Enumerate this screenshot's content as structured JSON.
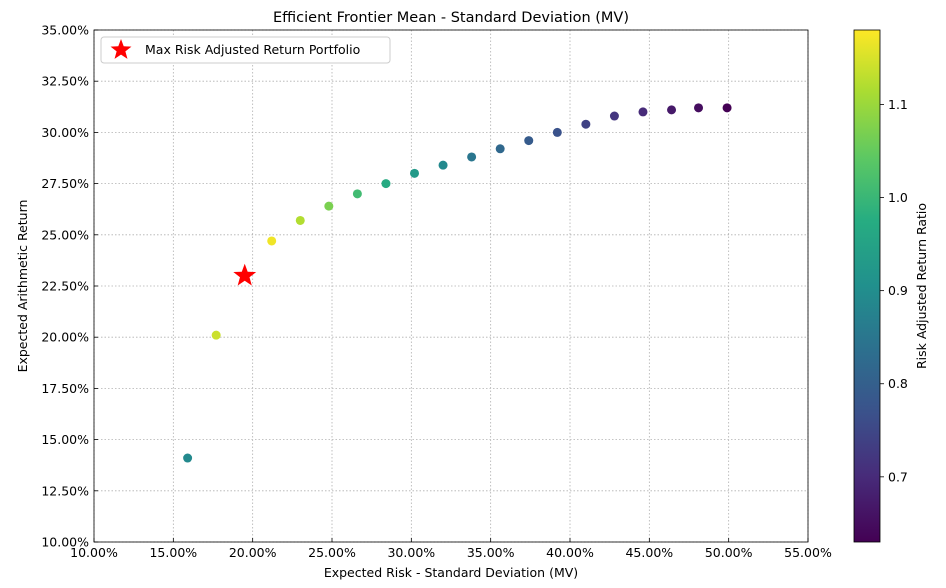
{
  "chart_data": {
    "type": "scatter",
    "title": "Efficient Frontier Mean - Standard Deviation (MV)",
    "xlabel": "Expected Risk - Standard Deviation (MV)",
    "ylabel": "Expected Arithmetic Return",
    "xlim": [
      0.1,
      0.55
    ],
    "ylim": [
      0.1,
      0.35
    ],
    "xticks": [
      0.1,
      0.15,
      0.2,
      0.25,
      0.3,
      0.35,
      0.4,
      0.45,
      0.5,
      0.55
    ],
    "xtick_labels": [
      "10.00%",
      "15.00%",
      "20.00%",
      "25.00%",
      "30.00%",
      "35.00%",
      "40.00%",
      "45.00%",
      "50.00%",
      "55.00%"
    ],
    "yticks": [
      0.1,
      0.125,
      0.15,
      0.175,
      0.2,
      0.225,
      0.25,
      0.275,
      0.3,
      0.325,
      0.35
    ],
    "ytick_labels": [
      "10.00%",
      "12.50%",
      "15.00%",
      "17.50%",
      "20.00%",
      "22.50%",
      "25.00%",
      "27.50%",
      "30.00%",
      "32.50%",
      "35.00%"
    ],
    "grid": true,
    "legend": {
      "placement": "top-left",
      "entries": [
        "Max Risk Adjusted Return Portfolio"
      ]
    },
    "colorbar": {
      "label": "Risk Adjusted Return Ratio",
      "range": [
        0.63,
        1.18
      ],
      "ticks": [
        0.7,
        0.8,
        0.9,
        1.0,
        1.1
      ],
      "tick_labels": [
        "0.7",
        "0.8",
        "0.9",
        "1.0",
        "1.1"
      ],
      "colormap": "viridis"
    },
    "series": [
      {
        "type": "scatter",
        "x": [
          0.159,
          0.177,
          0.212,
          0.23,
          0.248,
          0.266,
          0.284,
          0.302,
          0.32,
          0.338,
          0.356,
          0.374,
          0.392,
          0.41,
          0.428,
          0.446,
          0.464,
          0.481,
          0.499
        ],
        "y": [
          0.141,
          0.201,
          0.247,
          0.257,
          0.264,
          0.27,
          0.275,
          0.28,
          0.284,
          0.288,
          0.292,
          0.296,
          0.3,
          0.304,
          0.308,
          0.31,
          0.311,
          0.312,
          0.312
        ],
        "ratio": [
          0.89,
          1.14,
          1.17,
          1.12,
          1.07,
          1.01,
          0.97,
          0.93,
          0.89,
          0.85,
          0.82,
          0.79,
          0.77,
          0.74,
          0.72,
          0.7,
          0.67,
          0.65,
          0.63
        ]
      },
      {
        "name": "Max Risk Adjusted Return Portfolio",
        "type": "scatter",
        "marker": "star",
        "color": "#ff0000",
        "x": [
          0.195
        ],
        "y": [
          0.23
        ]
      }
    ]
  }
}
